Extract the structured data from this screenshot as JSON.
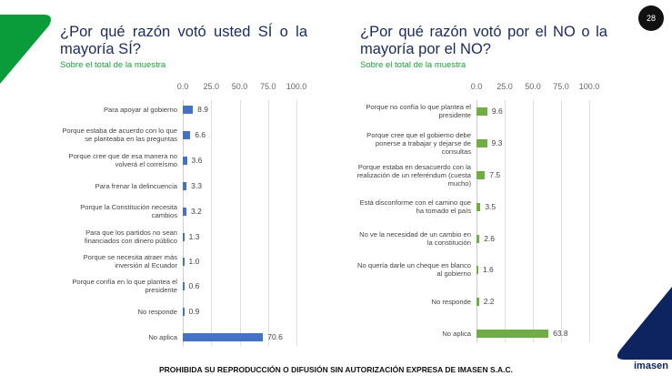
{
  "page_number": "28",
  "footer": "PROHIBIDA SU REPRODUCCIÓN O DIFUSIÓN SIN AUTORIZACIÓN EXPRESA DE IMASEN S.A.C.",
  "logo": "imasen",
  "chart_data": [
    {
      "type": "bar",
      "orientation": "horizontal",
      "title": "¿Por qué razón votó usted SÍ o la mayoría SÍ?",
      "subtitle": "Sobre el total de la muestra",
      "color": "#4472c4",
      "xlim": [
        0,
        100
      ],
      "ticks": [
        "0.0",
        "25.0",
        "50.0",
        "75.0",
        "100.0"
      ],
      "categories": [
        "Para apoyar al gobierno",
        "Porque estaba de acuerdo con lo que se planteaba en las preguntas",
        "Porque cree que de esa manera no volverá el correísmo",
        "Para frenar la delincuencia",
        "Porque la Constitución necesita cambios",
        "Para que los partidos no sean financiados con dinero público",
        "Porque se necesita atraer más inversión al Ecuador",
        "Porque confía en lo que plantea el presidente",
        "No responde",
        "No aplica"
      ],
      "values": [
        8.9,
        6.6,
        3.6,
        3.3,
        3.2,
        1.3,
        1.0,
        0.6,
        0.9,
        70.6
      ]
    },
    {
      "type": "bar",
      "orientation": "horizontal",
      "title": "¿Por qué razón votó por el NO o la mayoría por el NO?",
      "subtitle": "Sobre el total de la muestra",
      "color": "#70ad47",
      "xlim": [
        0,
        100
      ],
      "ticks": [
        "0.0",
        "25.0",
        "50.0",
        "75.0",
        "100.0"
      ],
      "categories": [
        "Porque no confía lo que plantea el presidente",
        "Porque cree que el gobierno debe ponerse a trabajar y dejarse de consultas",
        "Porque estaba en desacuerdo con la realización de un referéndum (cuesta mucho)",
        "Está disconforme con el camino que ha tomado el país",
        "No ve la necesidad de un cambio en la constitución",
        "No quería darle un cheque en blanco al gobierno",
        "No responde",
        "No aplica"
      ],
      "values": [
        9.6,
        9.3,
        7.5,
        3.5,
        2.6,
        1.6,
        2.2,
        63.8
      ]
    }
  ]
}
